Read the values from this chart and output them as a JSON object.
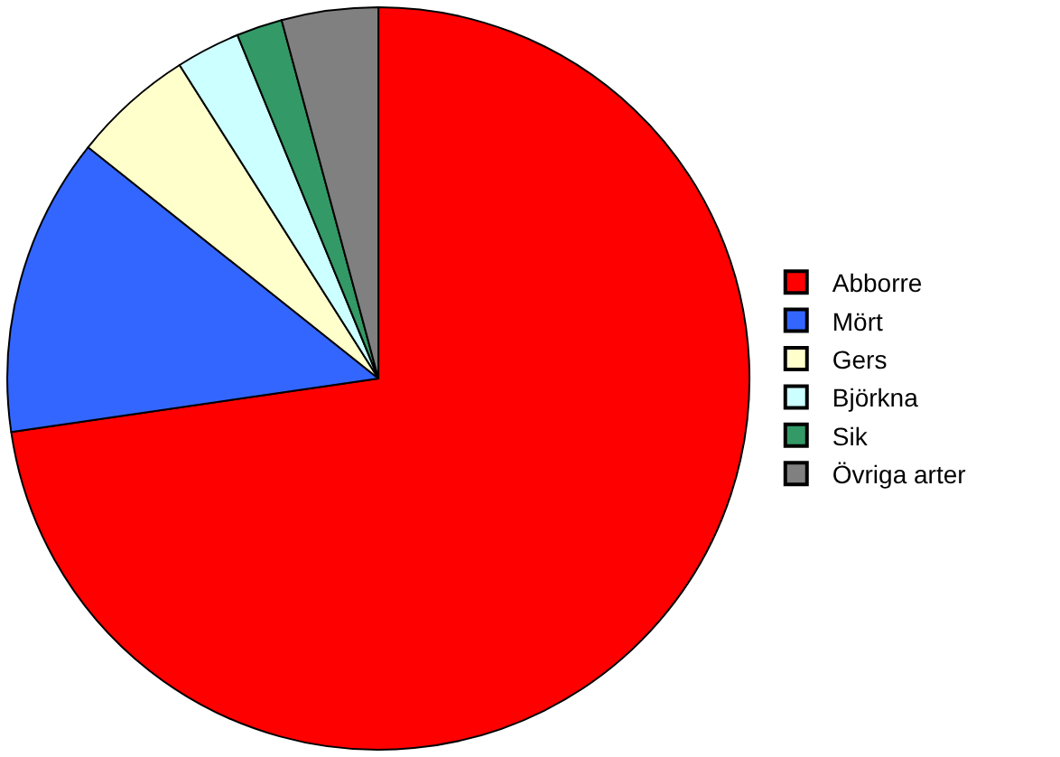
{
  "chart_data": {
    "type": "pie",
    "categories": [
      "Abborre",
      "Mört",
      "Gers",
      "Björkna",
      "Sik",
      "Övriga arter"
    ],
    "values": [
      72.7,
      13,
      5.3,
      2.8,
      2,
      4.2
    ],
    "colors": [
      "#ff0000",
      "#3366ff",
      "#ffffcc",
      "#ccffff",
      "#339966",
      "#808080"
    ],
    "legend": "right"
  }
}
